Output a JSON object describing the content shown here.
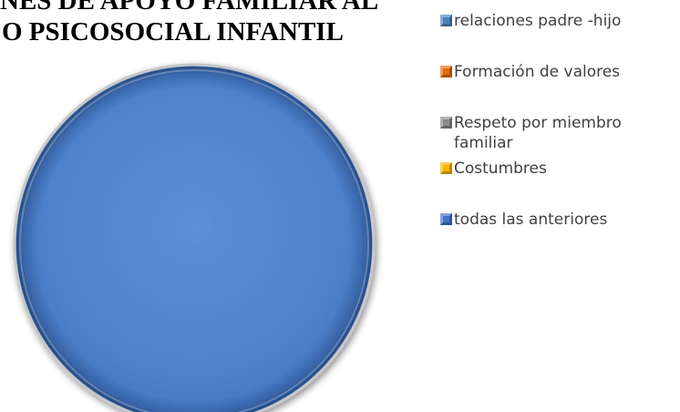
{
  "chart_data": {
    "type": "pie",
    "title_lines": [
      "NES DE APOYO FAMILIAR AL",
      "O PSICOSOCIAL INFANTIL"
    ],
    "legend_placement": "right",
    "series": [
      {
        "name": "",
        "values": [
          0,
          0,
          0,
          0,
          100
        ]
      }
    ],
    "categories": [
      "relaciones padre -hijo",
      "Formación de valores",
      "Respeto por miembro familiar",
      "Costumbres",
      "todas las anteriores"
    ],
    "colors": [
      "#4F81BD",
      "#E46C0A",
      "#8A8A8A",
      "#F2B705",
      "#4472C4"
    ]
  },
  "legend": {
    "items": [
      {
        "label": "relaciones padre -hijo",
        "color": "#4F81BD"
      },
      {
        "label": "Formación de valores",
        "color": "#E46C0A"
      },
      {
        "label_line1": "Respeto por miembro",
        "label_line2": "familiar",
        "color": "#8A8A8A"
      },
      {
        "label": "Costumbres",
        "color": "#F2B705"
      },
      {
        "label": "todas las anteriores",
        "color": "#4472C4"
      }
    ]
  }
}
